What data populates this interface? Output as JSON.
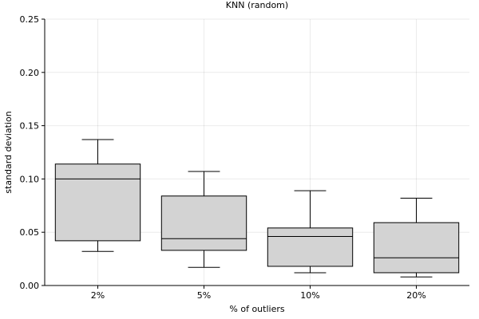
{
  "chart_data": {
    "type": "box",
    "title": "KNN (random)",
    "xlabel": "% of outliers",
    "ylabel": "standard deviation",
    "ylim": [
      0,
      0.25
    ],
    "yticks": [
      "0.00",
      "0.05",
      "0.10",
      "0.15",
      "0.20",
      "0.25"
    ],
    "grid": true,
    "categories": [
      "2%",
      "5%",
      "10%",
      "20%"
    ],
    "boxes": [
      {
        "category": "2%",
        "min": 0.032,
        "q1": 0.042,
        "median": 0.1,
        "q3": 0.114,
        "max": 0.137
      },
      {
        "category": "5%",
        "min": 0.017,
        "q1": 0.033,
        "median": 0.044,
        "q3": 0.084,
        "max": 0.107
      },
      {
        "category": "10%",
        "min": 0.012,
        "q1": 0.018,
        "median": 0.046,
        "q3": 0.054,
        "max": 0.089
      },
      {
        "category": "20%",
        "min": 0.008,
        "q1": 0.012,
        "median": 0.026,
        "q3": 0.059,
        "max": 0.082
      }
    ],
    "box_fill": "#d3d3d3",
    "box_stroke": "#000000"
  }
}
